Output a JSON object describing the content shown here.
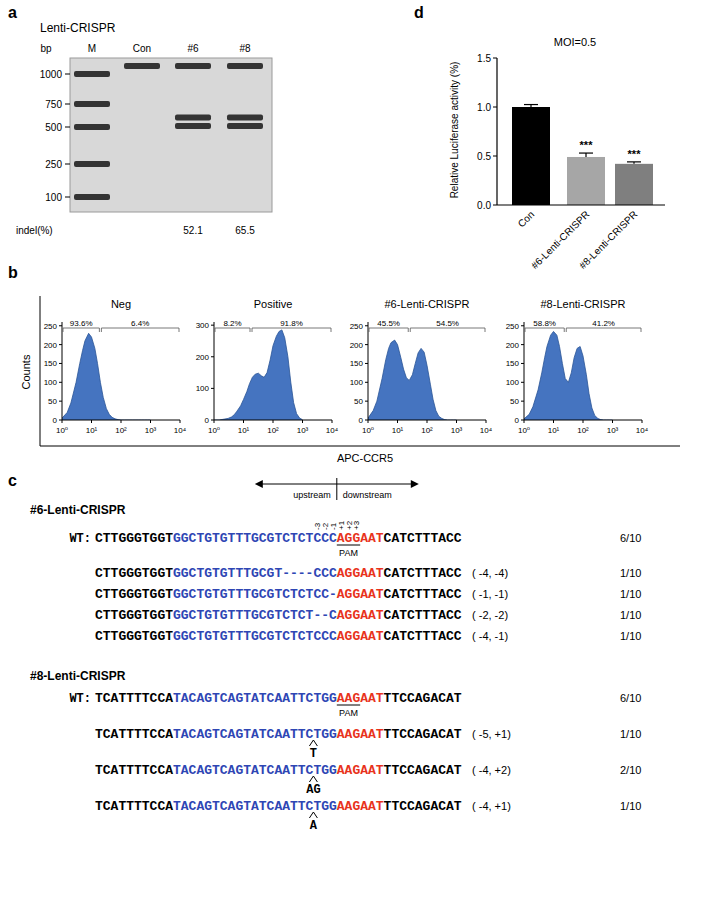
{
  "panel_labels": [
    "a",
    "b",
    "c",
    "d"
  ],
  "gel": {
    "title": "Lenti-CRISPR",
    "axis_label": "bp",
    "ladder": [
      1000,
      750,
      500,
      250,
      100
    ],
    "lanes": [
      {
        "label": "M",
        "bands": [
          1000,
          750,
          500,
          250,
          100
        ]
      },
      {
        "label": "Con",
        "bands": [
          1080
        ]
      },
      {
        "label": "#6",
        "bands": [
          1080,
          590,
          510
        ]
      },
      {
        "label": "#8",
        "bands": [
          1080,
          590,
          510
        ]
      }
    ],
    "indel_label": "indel(%)",
    "indel": [
      null,
      null,
      52.1,
      65.5
    ]
  },
  "flow": {
    "xlabel": "APC-CCR5",
    "ylabel": "Counts"
  },
  "chart_data": [
    {
      "type": "area",
      "title": "Neg",
      "log": "x",
      "color": "#4574c0",
      "x": [
        1,
        1.5,
        2,
        3,
        4,
        5,
        6,
        8,
        10,
        13,
        16,
        20,
        25,
        32,
        40,
        50,
        63,
        80,
        100,
        130,
        160,
        200,
        250,
        320,
        400,
        500,
        630,
        800,
        1000
      ],
      "values": [
        5,
        20,
        45,
        100,
        150,
        185,
        210,
        230,
        220,
        190,
        150,
        100,
        60,
        30,
        15,
        7,
        3,
        1,
        0,
        0,
        0,
        0,
        0,
        0,
        0,
        0,
        0,
        0,
        0
      ],
      "xlim": [
        1,
        10000
      ],
      "xticks": [
        {
          "value": 1,
          "label": "10⁰"
        },
        {
          "value": 10,
          "label": "10¹"
        },
        {
          "value": 100,
          "label": "10²"
        },
        {
          "value": 1000,
          "label": "10³"
        },
        {
          "value": 10000,
          "label": "10⁴"
        }
      ],
      "ylim": [
        0,
        260
      ],
      "yticks": [
        0,
        50,
        100,
        150,
        200,
        250
      ],
      "gates": {
        "bounds": [
          1,
          20,
          10000
        ],
        "values": [
          93.6,
          6.4
        ],
        "value_labels": [
          "93.6%",
          "6.4%"
        ]
      }
    },
    {
      "type": "area",
      "title": "Positive",
      "log": "x",
      "color": "#4574c0",
      "x": [
        1,
        1.5,
        2,
        3,
        4,
        5,
        6,
        8,
        10,
        13,
        16,
        20,
        25,
        32,
        40,
        50,
        63,
        80,
        100,
        130,
        160,
        200,
        250,
        320,
        400,
        500,
        630,
        800,
        1000
      ],
      "values": [
        0,
        0,
        2,
        5,
        10,
        18,
        28,
        45,
        65,
        90,
        115,
        135,
        145,
        148,
        140,
        135,
        150,
        190,
        235,
        265,
        280,
        285,
        260,
        200,
        120,
        55,
        20,
        6,
        1
      ],
      "xlim": [
        1,
        10000
      ],
      "xticks": [
        {
          "value": 1,
          "label": "10⁰"
        },
        {
          "value": 10,
          "label": "10¹"
        },
        {
          "value": 100,
          "label": "10²"
        },
        {
          "value": 1000,
          "label": "10³"
        },
        {
          "value": 10000,
          "label": "10⁴"
        }
      ],
      "ylim": [
        0,
        310
      ],
      "yticks": [
        0,
        100,
        200,
        300
      ],
      "gates": {
        "bounds": [
          1,
          18,
          10000
        ],
        "values": [
          8.2,
          91.8
        ],
        "value_labels": [
          "8.2%",
          "91.8%"
        ]
      }
    },
    {
      "type": "area",
      "title": "#6-Lenti-CRISPR",
      "log": "x",
      "color": "#4574c0",
      "x": [
        1,
        1.5,
        2,
        3,
        4,
        5,
        6,
        8,
        10,
        13,
        16,
        20,
        25,
        32,
        40,
        50,
        63,
        80,
        100,
        130,
        160,
        200,
        250,
        320,
        400,
        500,
        630,
        800,
        1000
      ],
      "values": [
        5,
        25,
        50,
        110,
        160,
        190,
        205,
        212,
        200,
        165,
        135,
        112,
        105,
        120,
        150,
        178,
        190,
        180,
        145,
        95,
        55,
        25,
        10,
        4,
        1,
        0,
        0,
        0,
        0
      ],
      "xlim": [
        1,
        10000
      ],
      "xticks": [
        {
          "value": 1,
          "label": "10⁰"
        },
        {
          "value": 10,
          "label": "10¹"
        },
        {
          "value": 100,
          "label": "10²"
        },
        {
          "value": 1000,
          "label": "10³"
        },
        {
          "value": 10000,
          "label": "10⁴"
        }
      ],
      "ylim": [
        0,
        260
      ],
      "yticks": [
        0,
        50,
        100,
        150,
        200,
        250
      ],
      "gates": {
        "bounds": [
          1,
          25,
          10000
        ],
        "values": [
          45.5,
          54.5
        ],
        "value_labels": [
          "45.5%",
          "54.5%"
        ]
      }
    },
    {
      "type": "area",
      "title": "#8-Lenti-CRISPR",
      "log": "x",
      "color": "#4574c0",
      "x": [
        1,
        1.5,
        2,
        3,
        4,
        5,
        6,
        8,
        10,
        13,
        16,
        20,
        25,
        32,
        40,
        50,
        63,
        80,
        100,
        130,
        160,
        200,
        250,
        320,
        400,
        500,
        630,
        800,
        1000
      ],
      "values": [
        3,
        15,
        35,
        80,
        125,
        165,
        195,
        225,
        235,
        225,
        195,
        150,
        110,
        100,
        125,
        165,
        190,
        195,
        170,
        120,
        70,
        32,
        12,
        4,
        1,
        0,
        0,
        0,
        0
      ],
      "xlim": [
        1,
        10000
      ],
      "xticks": [
        {
          "value": 1,
          "label": "10⁰"
        },
        {
          "value": 10,
          "label": "10¹"
        },
        {
          "value": 100,
          "label": "10²"
        },
        {
          "value": 1000,
          "label": "10³"
        },
        {
          "value": 10000,
          "label": "10⁴"
        }
      ],
      "ylim": [
        0,
        260
      ],
      "yticks": [
        0,
        50,
        100,
        150,
        200,
        250
      ],
      "gates": {
        "bounds": [
          1,
          25,
          10000
        ],
        "values": [
          58.8,
          41.2
        ],
        "value_labels": [
          "58.8%",
          "41.2%"
        ]
      }
    },
    {
      "type": "bar",
      "title": "MOI=0.5",
      "ylabel": "Relative Luciferase activity (%)",
      "categories": [
        "Con",
        "#6-Lenti-CRISPR",
        "#8-Lenti-CRISPR"
      ],
      "values": [
        1.0,
        0.49,
        0.42
      ],
      "errors": [
        0.025,
        0.04,
        0.02
      ],
      "colors": [
        "#000000",
        "#a6a6a6",
        "#7f7f7f"
      ],
      "significance": [
        null,
        "***",
        "***"
      ],
      "ylim": [
        0,
        1.5
      ],
      "yticks": [
        {
          "value": 0,
          "label": "0.0"
        },
        0.5,
        {
          "value": 1,
          "label": "1.0"
        },
        1.5
      ]
    }
  ],
  "sequences": {
    "arrows": {
      "upstream": "upstream",
      "downstream": "downstream"
    },
    "positions": [
      "-3",
      "-2",
      "-1",
      "+1",
      "+2",
      "+3"
    ],
    "blocks": [
      {
        "title": "#6-Lenti-CRISPR",
        "pam": "PAM",
        "rows": [
          {
            "label": "WT:",
            "segments": [
              {
                "text": "CTTGGGTGGT",
                "color": "#000000"
              },
              {
                "text": "GGCTGTGTTTGCGTCTCTCCC",
                "color": "#2e46b4"
              },
              {
                "text": "AGGAAT",
                "color": "#e8331c"
              },
              {
                "text": "CATCTTTACC",
                "color": "#000000"
              }
            ],
            "freq": "6/10"
          },
          {
            "segments": [
              {
                "text": "CTTGGGTGGT",
                "color": "#000000"
              },
              {
                "text": "GGCTGTGTTTGCGT----CCC",
                "color": "#2e46b4"
              },
              {
                "text": "AGGAAT",
                "color": "#e8331c"
              },
              {
                "text": "CATCTTTACC",
                "color": "#000000"
              }
            ],
            "change": "( -4, -4)",
            "freq": "1/10"
          },
          {
            "segments": [
              {
                "text": "CTTGGGTGGT",
                "color": "#000000"
              },
              {
                "text": "GGCTGTGTTTGCGTCTCTCC-",
                "color": "#2e46b4"
              },
              {
                "text": "AGGAAT",
                "color": "#e8331c"
              },
              {
                "text": "CATCTTTACC",
                "color": "#000000"
              }
            ],
            "change": "( -1, -1)",
            "freq": "1/10"
          },
          {
            "segments": [
              {
                "text": "CTTGGGTGGT",
                "color": "#000000"
              },
              {
                "text": "GGCTGTGTTTGCGTCTCT--C",
                "color": "#2e46b4"
              },
              {
                "text": "AGGAAT",
                "color": "#e8331c"
              },
              {
                "text": "CATCTTTACC",
                "color": "#000000"
              }
            ],
            "change": "( -2, -2)",
            "freq": "1/10"
          },
          {
            "segments": [
              {
                "text": "CTTGGGTGGT",
                "color": "#000000"
              },
              {
                "text": "GGCTGTGTTTGCGTCTCTCCC",
                "color": "#2e46b4"
              },
              {
                "text": "AGGAAT",
                "color": "#e8331c"
              },
              {
                "text": "CATCTTTACC",
                "color": "#000000"
              }
            ],
            "change": "( -4, -1)",
            "freq": "1/10"
          }
        ]
      },
      {
        "title": "#8-Lenti-CRISPR",
        "pam": "PAM",
        "rows": [
          {
            "label": "WT:",
            "segments": [
              {
                "text": "TCATTTTCCA",
                "color": "#000000"
              },
              {
                "text": "TACAGTCAGTATCAATTCTGG",
                "color": "#2e46b4"
              },
              {
                "text": "AAGAAT",
                "color": "#e8331c"
              },
              {
                "text": "TTCCAGACAT",
                "color": "#000000"
              }
            ],
            "freq": "6/10"
          },
          {
            "segments": [
              {
                "text": "TCATTTTCCA",
                "color": "#000000"
              },
              {
                "text": "TACAGTCAGTATCAATTC",
                "color": "#2e46b4"
              },
              {
                "text": "T",
                "color": "#000000",
                "insert": true
              },
              {
                "text": "TGG",
                "color": "#2e46b4"
              },
              {
                "text": "AAGAAT",
                "color": "#e8331c"
              },
              {
                "text": "TTCCAGACAT",
                "color": "#000000"
              }
            ],
            "change": "( -5, +1)",
            "freq": "1/10"
          },
          {
            "segments": [
              {
                "text": "TCATTTTCCA",
                "color": "#000000"
              },
              {
                "text": "TACAGTCAGTATCAATTC",
                "color": "#2e46b4"
              },
              {
                "text": "AG",
                "color": "#000000",
                "insert": true
              },
              {
                "text": "TGG",
                "color": "#2e46b4"
              },
              {
                "text": "AAGAAT",
                "color": "#e8331c"
              },
              {
                "text": "TTCCAGACAT",
                "color": "#000000"
              }
            ],
            "change": "( -4, +2)",
            "freq": "2/10"
          },
          {
            "segments": [
              {
                "text": "TCATTTTCCA",
                "color": "#000000"
              },
              {
                "text": "TACAGTCAGTATCAATTC",
                "color": "#2e46b4"
              },
              {
                "text": "A",
                "color": "#000000",
                "insert": true
              },
              {
                "text": "TGG",
                "color": "#2e46b4"
              },
              {
                "text": "AAGAAT",
                "color": "#e8331c"
              },
              {
                "text": "TTCCAGACAT",
                "color": "#000000"
              }
            ],
            "change": "( -4, +1)",
            "freq": "1/10"
          }
        ]
      }
    ]
  }
}
